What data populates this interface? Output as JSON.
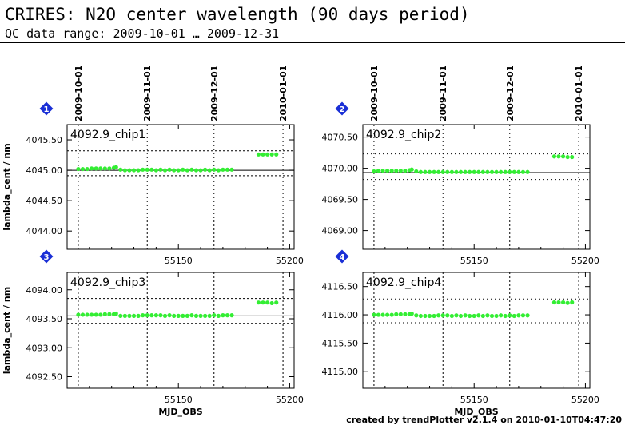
{
  "header": {
    "title": "CRIRES: N2O center wavelength (90 days period)",
    "subtitle": "QC data range: 2009-10-01 … 2009-12-31"
  },
  "footer": {
    "credit": "created by trendPlotter v2.1.4 on 2010-01-10T04:47:20"
  },
  "colors": {
    "points": "#33ee33",
    "badge": "#1a2fd6",
    "axis": "#000000"
  },
  "chart_data": [
    {
      "type": "scatter",
      "badge": "1",
      "label": "4092.9_chip1",
      "xlim": [
        55100,
        55202
      ],
      "ylim": [
        4043.7,
        4045.75
      ],
      "yticks": [
        "4044.00",
        "4044.50",
        "4045.00",
        "4045.50"
      ],
      "ytick_values": [
        4044.0,
        4044.5,
        4045.0,
        4045.5
      ],
      "xticks": [
        "55150",
        "55200"
      ],
      "xtick_values": [
        55150,
        55200
      ],
      "top_dates": [
        "2009-10-01",
        "2009-11-01",
        "2009-12-01",
        "2010-01-01"
      ],
      "top_date_mjd": [
        55105,
        55136,
        55166,
        55197
      ],
      "ylabel": "lambda_cent / nm",
      "xlabel": "",
      "ref_line": 4045.0,
      "dotted_lines": [
        4045.32,
        4044.91
      ],
      "points": [
        [
          55105,
          4045.02
        ],
        [
          55107,
          4045.02
        ],
        [
          55109,
          4045.02
        ],
        [
          55111,
          4045.03
        ],
        [
          55113,
          4045.03
        ],
        [
          55115,
          4045.03
        ],
        [
          55117,
          4045.03
        ],
        [
          55119,
          4045.03
        ],
        [
          55121,
          4045.04
        ],
        [
          55122,
          4045.05
        ],
        [
          55124,
          4045.01
        ],
        [
          55126,
          4045.0
        ],
        [
          55128,
          4045.0
        ],
        [
          55130,
          4045.0
        ],
        [
          55132,
          4045.0
        ],
        [
          55134,
          4045.01
        ],
        [
          55136,
          4045.01
        ],
        [
          55138,
          4045.01
        ],
        [
          55140,
          4045.0
        ],
        [
          55142,
          4045.01
        ],
        [
          55144,
          4045.0
        ],
        [
          55146,
          4045.01
        ],
        [
          55148,
          4045.0
        ],
        [
          55150,
          4045.0
        ],
        [
          55152,
          4045.01
        ],
        [
          55154,
          4045.0
        ],
        [
          55156,
          4045.01
        ],
        [
          55158,
          4045.0
        ],
        [
          55160,
          4045.0
        ],
        [
          55162,
          4045.01
        ],
        [
          55164,
          4045.0
        ],
        [
          55166,
          4045.01
        ],
        [
          55168,
          4045.0
        ],
        [
          55170,
          4045.01
        ],
        [
          55172,
          4045.01
        ],
        [
          55174,
          4045.01
        ],
        [
          55186,
          4045.26
        ],
        [
          55188,
          4045.26
        ],
        [
          55190,
          4045.26
        ],
        [
          55192,
          4045.26
        ],
        [
          55194,
          4045.26
        ]
      ]
    },
    {
      "type": "scatter",
      "badge": "2",
      "label": "4092.9_chip2",
      "xlim": [
        55100,
        55202
      ],
      "ylim": [
        4068.7,
        4070.7
      ],
      "yticks": [
        "4069.00",
        "4069.50",
        "4070.00",
        "4070.50"
      ],
      "ytick_values": [
        4069.0,
        4069.5,
        4070.0,
        4070.5
      ],
      "xticks": [
        "55150",
        "55200"
      ],
      "xtick_values": [
        55150,
        55200
      ],
      "top_dates": [
        "2009-10-01",
        "2009-11-01",
        "2009-12-01",
        "2010-01-01"
      ],
      "top_date_mjd": [
        55105,
        55136,
        55166,
        55197
      ],
      "ylabel": "",
      "xlabel": "",
      "ref_line": 4069.93,
      "dotted_lines": [
        4070.23,
        4069.82
      ],
      "points": [
        [
          55105,
          4069.95
        ],
        [
          55107,
          4069.96
        ],
        [
          55109,
          4069.96
        ],
        [
          55111,
          4069.96
        ],
        [
          55113,
          4069.96
        ],
        [
          55115,
          4069.96
        ],
        [
          55117,
          4069.96
        ],
        [
          55119,
          4069.96
        ],
        [
          55121,
          4069.97
        ],
        [
          55122,
          4069.98
        ],
        [
          55124,
          4069.95
        ],
        [
          55126,
          4069.94
        ],
        [
          55128,
          4069.94
        ],
        [
          55130,
          4069.94
        ],
        [
          55132,
          4069.94
        ],
        [
          55134,
          4069.94
        ],
        [
          55136,
          4069.94
        ],
        [
          55138,
          4069.94
        ],
        [
          55140,
          4069.94
        ],
        [
          55142,
          4069.94
        ],
        [
          55144,
          4069.94
        ],
        [
          55146,
          4069.94
        ],
        [
          55148,
          4069.94
        ],
        [
          55150,
          4069.94
        ],
        [
          55152,
          4069.94
        ],
        [
          55154,
          4069.94
        ],
        [
          55156,
          4069.94
        ],
        [
          55158,
          4069.94
        ],
        [
          55160,
          4069.94
        ],
        [
          55162,
          4069.94
        ],
        [
          55164,
          4069.94
        ],
        [
          55166,
          4069.94
        ],
        [
          55168,
          4069.94
        ],
        [
          55170,
          4069.94
        ],
        [
          55172,
          4069.94
        ],
        [
          55174,
          4069.94
        ],
        [
          55186,
          4070.19
        ],
        [
          55188,
          4070.19
        ],
        [
          55190,
          4070.19
        ],
        [
          55192,
          4070.18
        ],
        [
          55194,
          4070.18
        ]
      ]
    },
    {
      "type": "scatter",
      "badge": "3",
      "label": "4092.9_chip3",
      "xlim": [
        55100,
        55202
      ],
      "ylim": [
        4092.3,
        4094.3
      ],
      "yticks": [
        "4092.50",
        "4093.00",
        "4093.50",
        "4094.00"
      ],
      "ytick_values": [
        4092.5,
        4093.0,
        4093.5,
        4094.0
      ],
      "xticks": [
        "55150",
        "55200"
      ],
      "xtick_values": [
        55150,
        55200
      ],
      "top_dates": [],
      "top_date_mjd": [
        55105,
        55136,
        55166,
        55197
      ],
      "ylabel": "lambda_cent / nm",
      "xlabel": "MJD_OBS",
      "ref_line": 4093.55,
      "dotted_lines": [
        4093.85,
        4093.42
      ],
      "points": [
        [
          55105,
          4093.57
        ],
        [
          55107,
          4093.57
        ],
        [
          55109,
          4093.57
        ],
        [
          55111,
          4093.57
        ],
        [
          55113,
          4093.57
        ],
        [
          55115,
          4093.57
        ],
        [
          55117,
          4093.58
        ],
        [
          55119,
          4093.58
        ],
        [
          55121,
          4093.58
        ],
        [
          55122,
          4093.59
        ],
        [
          55124,
          4093.55
        ],
        [
          55126,
          4093.55
        ],
        [
          55128,
          4093.55
        ],
        [
          55130,
          4093.55
        ],
        [
          55132,
          4093.55
        ],
        [
          55134,
          4093.56
        ],
        [
          55136,
          4093.56
        ],
        [
          55138,
          4093.56
        ],
        [
          55140,
          4093.56
        ],
        [
          55142,
          4093.56
        ],
        [
          55144,
          4093.55
        ],
        [
          55146,
          4093.56
        ],
        [
          55148,
          4093.55
        ],
        [
          55150,
          4093.55
        ],
        [
          55152,
          4093.55
        ],
        [
          55154,
          4093.55
        ],
        [
          55156,
          4093.56
        ],
        [
          55158,
          4093.55
        ],
        [
          55160,
          4093.55
        ],
        [
          55162,
          4093.55
        ],
        [
          55164,
          4093.55
        ],
        [
          55166,
          4093.56
        ],
        [
          55168,
          4093.55
        ],
        [
          55170,
          4093.56
        ],
        [
          55172,
          4093.56
        ],
        [
          55174,
          4093.56
        ],
        [
          55186,
          4093.78
        ],
        [
          55188,
          4093.78
        ],
        [
          55190,
          4093.78
        ],
        [
          55192,
          4093.77
        ],
        [
          55194,
          4093.78
        ]
      ]
    },
    {
      "type": "scatter",
      "badge": "4",
      "label": "4092.9_chip4",
      "xlim": [
        55100,
        55202
      ],
      "ylim": [
        4114.7,
        4116.75
      ],
      "yticks": [
        "4115.00",
        "4115.50",
        "4116.00",
        "4116.50"
      ],
      "ytick_values": [
        4115.0,
        4115.5,
        4116.0,
        4116.5
      ],
      "xticks": [
        "55150",
        "55200"
      ],
      "xtick_values": [
        55150,
        55200
      ],
      "top_dates": [],
      "top_date_mjd": [
        55105,
        55136,
        55166,
        55197
      ],
      "ylabel": "",
      "xlabel": "MJD_OBS",
      "ref_line": 4115.98,
      "dotted_lines": [
        4116.28,
        4115.86
      ],
      "points": [
        [
          55105,
          4116.0
        ],
        [
          55107,
          4116.0
        ],
        [
          55109,
          4116.0
        ],
        [
          55111,
          4116.0
        ],
        [
          55113,
          4116.0
        ],
        [
          55115,
          4116.01
        ],
        [
          55117,
          4116.01
        ],
        [
          55119,
          4116.01
        ],
        [
          55121,
          4116.01
        ],
        [
          55122,
          4116.02
        ],
        [
          55124,
          4115.99
        ],
        [
          55126,
          4115.98
        ],
        [
          55128,
          4115.98
        ],
        [
          55130,
          4115.98
        ],
        [
          55132,
          4115.98
        ],
        [
          55134,
          4115.99
        ],
        [
          55136,
          4115.99
        ],
        [
          55138,
          4115.99
        ],
        [
          55140,
          4115.98
        ],
        [
          55142,
          4115.99
        ],
        [
          55144,
          4115.98
        ],
        [
          55146,
          4115.99
        ],
        [
          55148,
          4115.98
        ],
        [
          55150,
          4115.98
        ],
        [
          55152,
          4115.99
        ],
        [
          55154,
          4115.98
        ],
        [
          55156,
          4115.99
        ],
        [
          55158,
          4115.98
        ],
        [
          55160,
          4115.98
        ],
        [
          55162,
          4115.99
        ],
        [
          55164,
          4115.98
        ],
        [
          55166,
          4115.99
        ],
        [
          55168,
          4115.98
        ],
        [
          55170,
          4115.99
        ],
        [
          55172,
          4115.99
        ],
        [
          55174,
          4115.99
        ],
        [
          55186,
          4116.22
        ],
        [
          55188,
          4116.22
        ],
        [
          55190,
          4116.22
        ],
        [
          55192,
          4116.21
        ],
        [
          55194,
          4116.22
        ]
      ]
    }
  ]
}
